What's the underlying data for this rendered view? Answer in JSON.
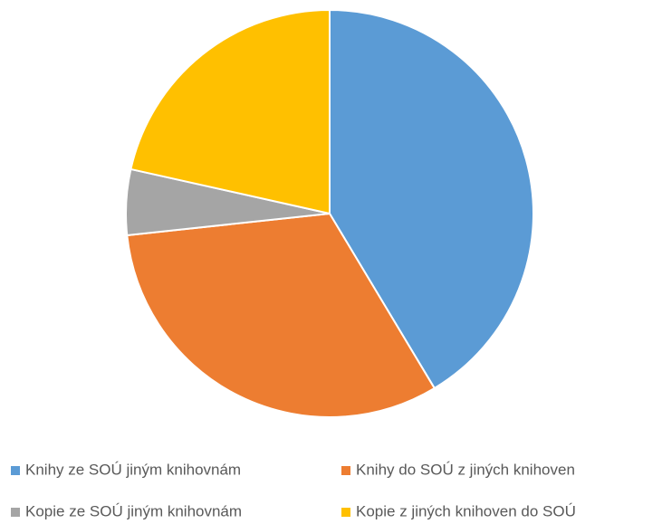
{
  "chart_data": {
    "type": "pie",
    "categories": [
      "Knihy ze SOÚ jiným knihovnám",
      "Knihy do SOÚ z jiných knihoven",
      "Kopie ze SOÚ jiným knihovnám",
      "Kopie z jiných knihoven do SOÚ"
    ],
    "values": [
      41.4,
      31.9,
      5.2,
      21.5
    ],
    "colors": [
      "#5b9bd5",
      "#ed7d31",
      "#a5a5a5",
      "#ffc000"
    ],
    "legend": "bottom"
  }
}
